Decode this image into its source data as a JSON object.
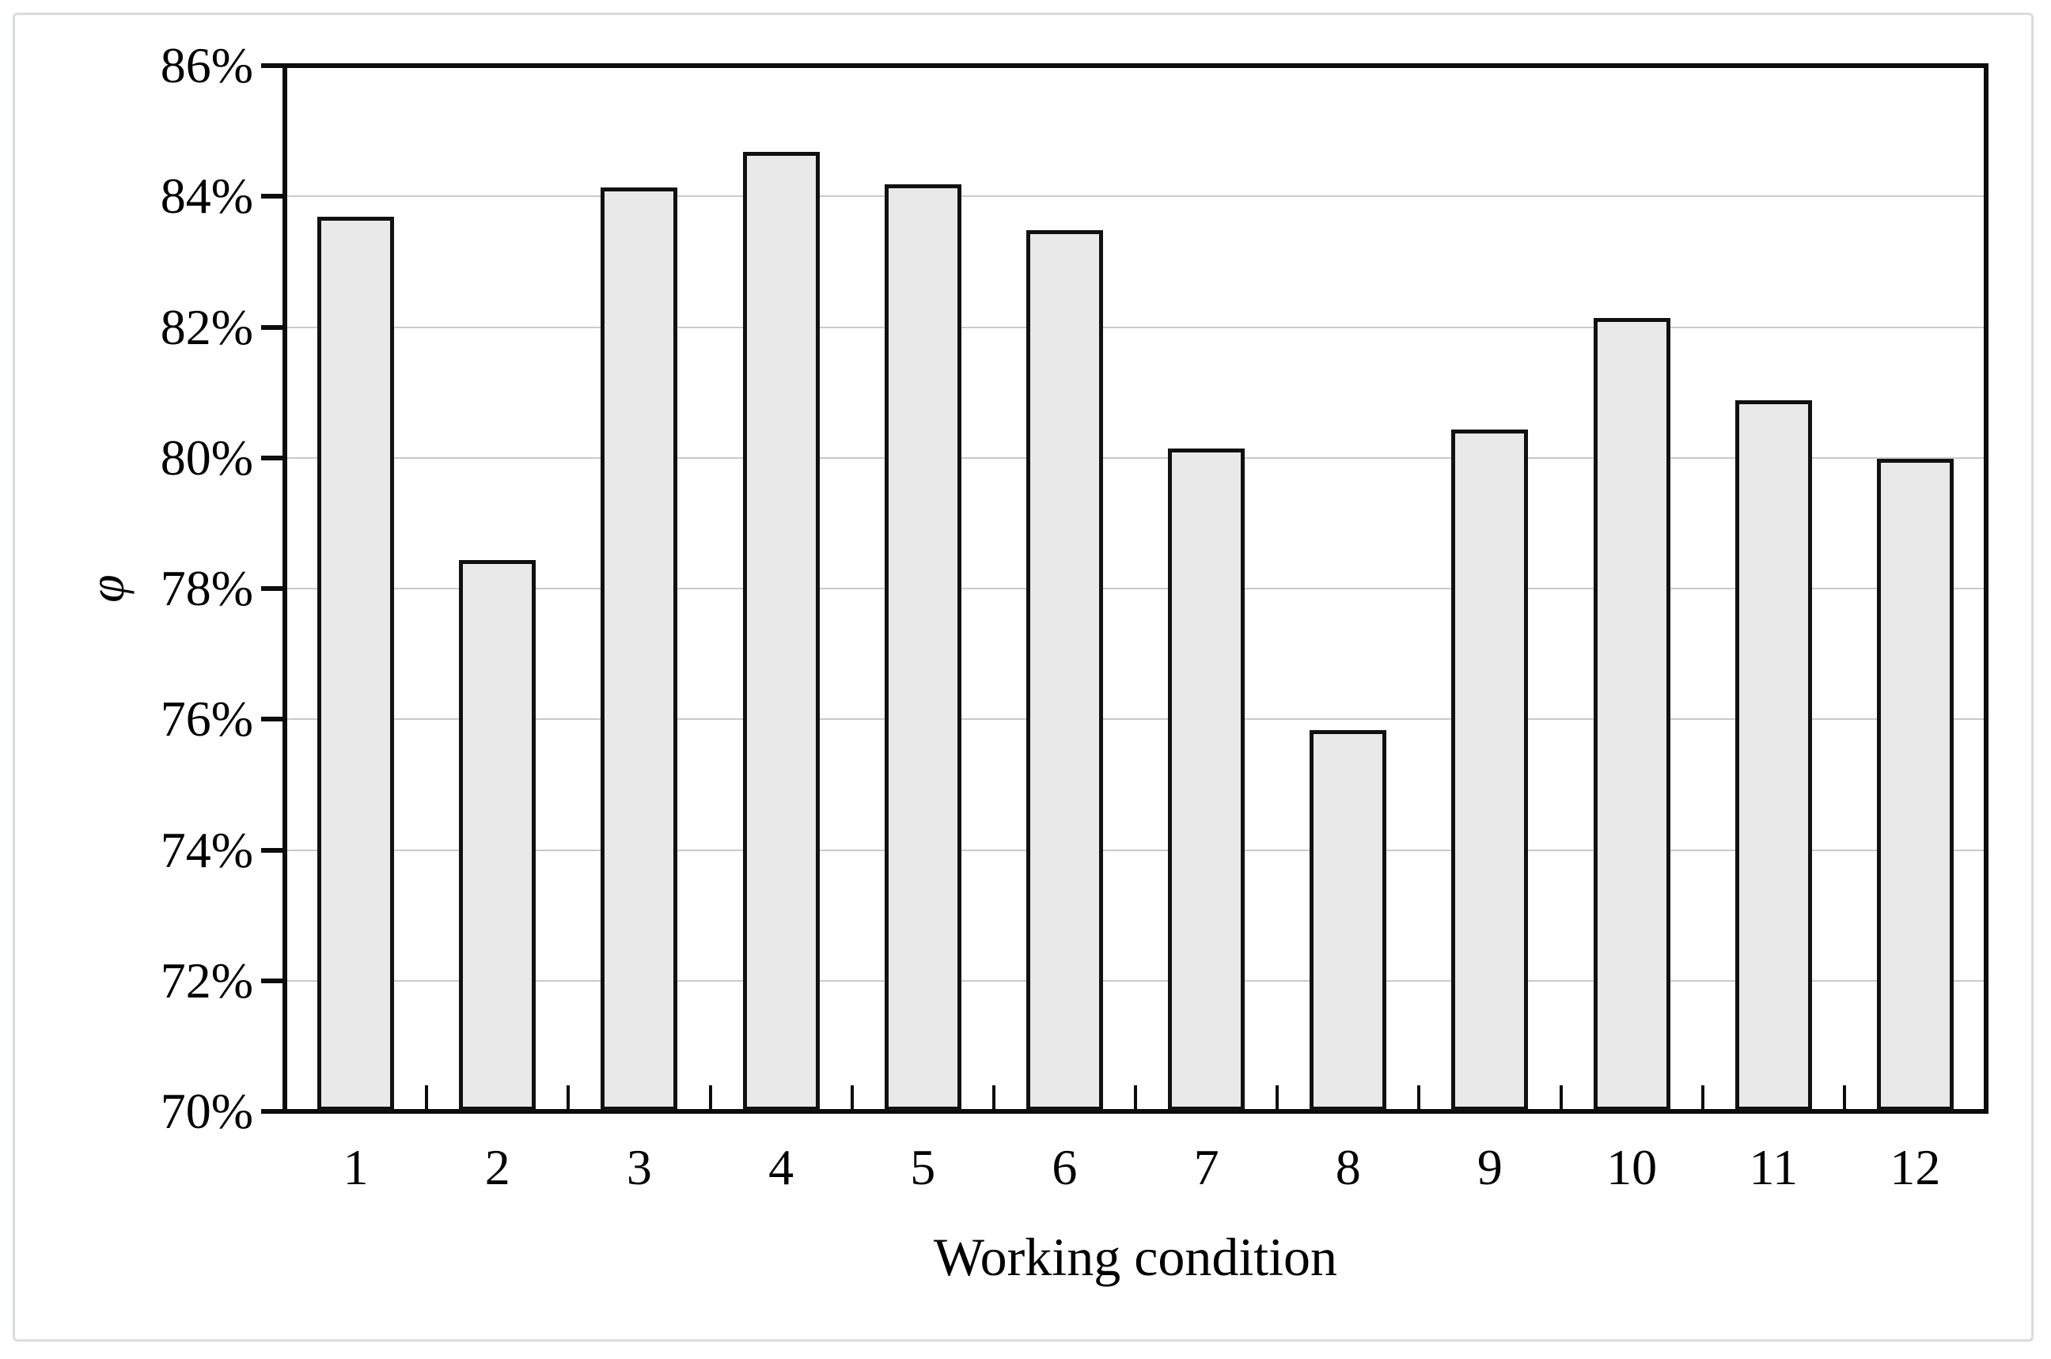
{
  "colors": {
    "bar_fill": "#e9e9e9",
    "bar_border": "#111111",
    "gridline": "#c9c9c9",
    "axis": "#0d0d0d",
    "frame_border": "#d9dcde",
    "text": "#000000",
    "background": "#ffffff"
  },
  "chart_data": {
    "type": "bar",
    "categories": [
      "1",
      "2",
      "3",
      "4",
      "5",
      "6",
      "7",
      "8",
      "9",
      "10",
      "11",
      "12"
    ],
    "values": [
      83.65,
      78.4,
      84.1,
      84.65,
      84.15,
      83.45,
      80.1,
      75.8,
      80.4,
      82.1,
      80.85,
      79.95
    ],
    "title": "",
    "xlabel": "Working condition",
    "ylabel": "φ",
    "ylim": [
      70,
      86
    ],
    "ytick_step": 2,
    "yticks": [
      86,
      84,
      82,
      80,
      78,
      76,
      74,
      72,
      70
    ],
    "ytick_labels": [
      "86%",
      "84%",
      "82%",
      "80%",
      "78%",
      "76%",
      "74%",
      "72%",
      "70%"
    ],
    "grid": "horizontal-major",
    "legend": "none",
    "bar_unit": "percent"
  }
}
